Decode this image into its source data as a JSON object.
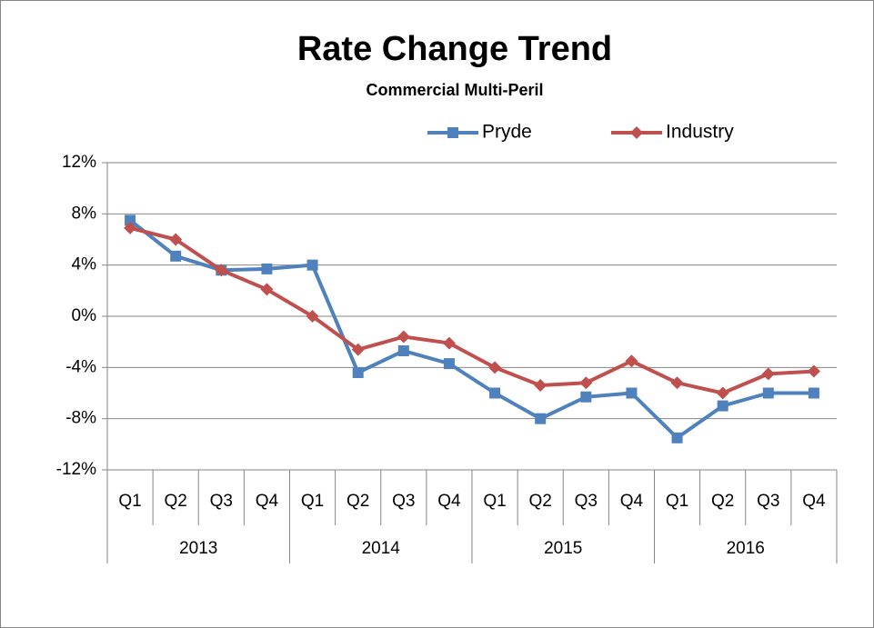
{
  "chart_data": {
    "type": "line",
    "title": "Rate Change Trend",
    "subtitle": "Commercial Multi-Peril",
    "categories": [
      "Q1",
      "Q2",
      "Q3",
      "Q4",
      "Q1",
      "Q2",
      "Q3",
      "Q4",
      "Q1",
      "Q2",
      "Q3",
      "Q4",
      "Q1",
      "Q2",
      "Q3",
      "Q4"
    ],
    "years": [
      "2013",
      "2014",
      "2015",
      "2016"
    ],
    "series": [
      {
        "name": "Pryde",
        "color": "#4f81bd",
        "marker": "square",
        "values": [
          7.5,
          4.7,
          3.6,
          3.7,
          4.0,
          -4.4,
          -2.7,
          -3.7,
          -6.0,
          -8.0,
          -6.3,
          -6.0,
          -9.5,
          -7.0,
          -6.0,
          -6.0
        ]
      },
      {
        "name": "Industry",
        "color": "#c0504d",
        "marker": "diamond",
        "values": [
          6.9,
          6.0,
          3.6,
          2.1,
          0.0,
          -2.6,
          -1.6,
          -2.1,
          -4.0,
          -5.4,
          -5.2,
          -3.5,
          -5.2,
          -6.0,
          -4.5,
          -4.3
        ]
      }
    ],
    "ylim": [
      -12,
      12
    ],
    "yticks": [
      {
        "value": -12,
        "label": "-12%"
      },
      {
        "value": -8,
        "label": "-8%"
      },
      {
        "value": -4,
        "label": "-4%"
      },
      {
        "value": 0,
        "label": "0%"
      },
      {
        "value": 4,
        "label": "4%"
      },
      {
        "value": 8,
        "label": "8%"
      },
      {
        "value": 12,
        "label": "12%"
      }
    ],
    "grid": true,
    "legend": "top"
  }
}
